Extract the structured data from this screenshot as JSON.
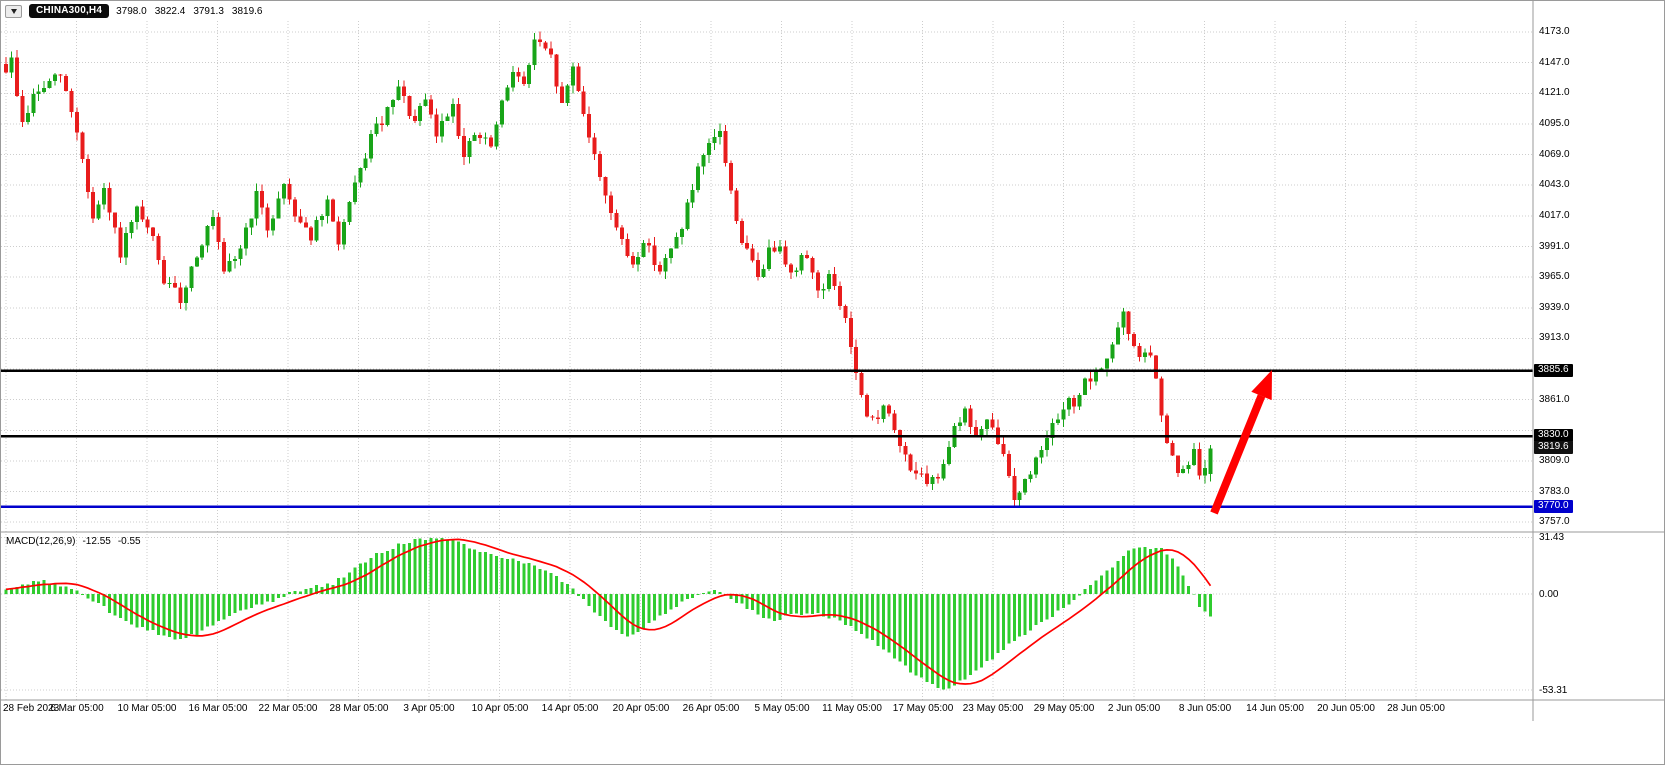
{
  "header": {
    "symbol": "CHINA300,H4",
    "open": "3798.0",
    "high": "3822.4",
    "low": "3791.3",
    "close": "3819.6"
  },
  "macd_panel": {
    "label": "MACD(12,26,9)",
    "main_value": "-12.55",
    "signal_value": "-0.55"
  },
  "price_axis": {
    "ticks": [
      "4173.0",
      "4147.0",
      "4121.0",
      "4095.0",
      "4069.0",
      "4043.0",
      "4017.0",
      "3991.0",
      "3965.0",
      "3939.0",
      "3913.0",
      "3861.0",
      "3809.0",
      "3783.0",
      "3757.0"
    ],
    "badges": [
      {
        "value": "3885.6",
        "price": 3885.6,
        "bg": "#000000",
        "fg": "#ffffff"
      },
      {
        "value": "3830.0",
        "price": 3830.0,
        "bg": "#000000",
        "fg": "#ffffff"
      },
      {
        "value": "3819.6",
        "price": 3819.6,
        "bg": "#111111",
        "fg": "#ffffff"
      },
      {
        "value": "3770.0",
        "price": 3770.0,
        "bg": "#0000cc",
        "fg": "#ffffff"
      }
    ]
  },
  "macd_axis": [
    {
      "label": "31.43",
      "value": 31.43
    },
    {
      "label": "0.00",
      "value": 0
    },
    {
      "label": "-53.31",
      "value": -53.31
    }
  ],
  "time_axis": {
    "labels": [
      "28 Feb 2023",
      "6 Mar 05:00",
      "10 Mar 05:00",
      "16 Mar 05:00",
      "22 Mar 05:00",
      "28 Mar 05:00",
      "3 Apr 05:00",
      "10 Apr 05:00",
      "14 Apr 05:00",
      "20 Apr 05:00",
      "26 Apr 05:00",
      "5 May 05:00",
      "11 May 05:00",
      "17 May 05:00",
      "23 May 05:00",
      "29 May 05:00",
      "2 Jun 05:00",
      "8 Jun 05:00",
      "14 Jun 05:00",
      "20 Jun 05:00",
      "28 Jun 05:00"
    ]
  },
  "levels": [
    {
      "name": "resistance-line",
      "price": 3885.6,
      "color": "#000000",
      "width": 2.5
    },
    {
      "name": "support-line",
      "price": 3830.0,
      "color": "#000000",
      "width": 2.5
    },
    {
      "name": "lower-support-line",
      "price": 3770.0,
      "color": "#0000cc",
      "width": 2.5
    }
  ],
  "chart_data": {
    "type": "candlestick",
    "symbol": "CHINA300",
    "timeframe": "H4",
    "title": "CHINA300,H4 3798.0 3822.4 3791.3 3819.6",
    "bars": 222,
    "seed": 9,
    "last": {
      "open": 3798.0,
      "high": 3822.4,
      "low": 3791.3,
      "close": 3819.6
    },
    "macd_last_main": -12.55,
    "macd_last_signal": -0.55,
    "y_axis_range": [
      3748,
      4184
    ],
    "macd_axis_range": [
      -58,
      34
    ],
    "grid_prices": [
      4173,
      4147,
      4121,
      4095,
      4069,
      4043,
      4017,
      3991,
      3965,
      3939,
      3913,
      3887,
      3861,
      3835,
      3809,
      3783,
      3757
    ],
    "macd_grid": [
      31.43,
      0,
      -53.31
    ],
    "key_levels": [
      3885.6,
      3830.0,
      3770.0
    ],
    "price_path_format": "[bar_index, close_price] waypoints traced from the chart; candles interpolated between them",
    "price_path": [
      [
        0,
        4142
      ],
      [
        1,
        4148
      ],
      [
        3,
        4095
      ],
      [
        5,
        4118
      ],
      [
        7,
        4126
      ],
      [
        10,
        4136
      ],
      [
        13,
        4090
      ],
      [
        16,
        4014
      ],
      [
        18,
        4036
      ],
      [
        21,
        3986
      ],
      [
        24,
        4020
      ],
      [
        27,
        3996
      ],
      [
        29,
        3962
      ],
      [
        32,
        3946
      ],
      [
        35,
        3986
      ],
      [
        38,
        4014
      ],
      [
        40,
        3966
      ],
      [
        43,
        3990
      ],
      [
        46,
        4034
      ],
      [
        48,
        4006
      ],
      [
        51,
        4044
      ],
      [
        53,
        4020
      ],
      [
        56,
        4000
      ],
      [
        59,
        4026
      ],
      [
        61,
        3996
      ],
      [
        64,
        4040
      ],
      [
        67,
        4084
      ],
      [
        70,
        4104
      ],
      [
        72,
        4124
      ],
      [
        75,
        4096
      ],
      [
        77,
        4114
      ],
      [
        79,
        4086
      ],
      [
        82,
        4114
      ],
      [
        84,
        4066
      ],
      [
        86,
        4086
      ],
      [
        89,
        4076
      ],
      [
        91,
        4110
      ],
      [
        93,
        4144
      ],
      [
        95,
        4126
      ],
      [
        97,
        4166
      ],
      [
        100,
        4150
      ],
      [
        102,
        4110
      ],
      [
        104,
        4144
      ],
      [
        106,
        4106
      ],
      [
        108,
        4066
      ],
      [
        111,
        4022
      ],
      [
        113,
        3992
      ],
      [
        115,
        3976
      ],
      [
        117,
        3996
      ],
      [
        120,
        3972
      ],
      [
        122,
        3986
      ],
      [
        124,
        4010
      ],
      [
        127,
        4054
      ],
      [
        129,
        4074
      ],
      [
        131,
        4090
      ],
      [
        133,
        4036
      ],
      [
        135,
        3996
      ],
      [
        138,
        3966
      ],
      [
        140,
        3986
      ],
      [
        142,
        3996
      ],
      [
        144,
        3966
      ],
      [
        147,
        3986
      ],
      [
        149,
        3952
      ],
      [
        151,
        3966
      ],
      [
        154,
        3930
      ],
      [
        156,
        3882
      ],
      [
        158,
        3842
      ],
      [
        160,
        3846
      ],
      [
        161,
        3860
      ],
      [
        163,
        3832
      ],
      [
        165,
        3812
      ],
      [
        167,
        3800
      ],
      [
        169,
        3786
      ],
      [
        171,
        3796
      ],
      [
        172,
        3810
      ],
      [
        174,
        3840
      ],
      [
        176,
        3850
      ],
      [
        178,
        3830
      ],
      [
        180,
        3840
      ],
      [
        182,
        3826
      ],
      [
        183,
        3812
      ],
      [
        185,
        3780
      ],
      [
        187,
        3790
      ],
      [
        189,
        3810
      ],
      [
        191,
        3834
      ],
      [
        193,
        3840
      ],
      [
        194,
        3854
      ],
      [
        196,
        3860
      ],
      [
        198,
        3874
      ],
      [
        200,
        3880
      ],
      [
        202,
        3898
      ],
      [
        204,
        3920
      ],
      [
        205,
        3934
      ],
      [
        206,
        3912
      ],
      [
        208,
        3900
      ],
      [
        210,
        3896
      ],
      [
        211,
        3880
      ],
      [
        212,
        3842
      ],
      [
        214,
        3810
      ],
      [
        215,
        3796
      ],
      [
        217,
        3806
      ],
      [
        218,
        3814
      ],
      [
        219,
        3802
      ],
      [
        220,
        3798
      ],
      [
        221,
        3819.6
      ]
    ],
    "macd_path_format": "[bar_index, macd_histogram_value] waypoints traced from the indicator pane",
    "macd_path": [
      [
        0,
        3
      ],
      [
        4,
        6
      ],
      [
        7,
        7
      ],
      [
        11,
        4
      ],
      [
        14,
        0
      ],
      [
        17,
        -5
      ],
      [
        20,
        -12
      ],
      [
        24,
        -18
      ],
      [
        28,
        -22
      ],
      [
        31,
        -25
      ],
      [
        35,
        -22
      ],
      [
        39,
        -15
      ],
      [
        42,
        -10
      ],
      [
        46,
        -6
      ],
      [
        50,
        -3
      ],
      [
        53,
        2
      ],
      [
        57,
        4
      ],
      [
        60,
        6
      ],
      [
        62,
        10
      ],
      [
        65,
        16
      ],
      [
        68,
        22
      ],
      [
        72,
        27
      ],
      [
        75,
        30
      ],
      [
        79,
        31
      ],
      [
        83,
        29
      ],
      [
        86,
        25
      ],
      [
        89,
        22
      ],
      [
        92,
        20
      ],
      [
        94,
        18
      ],
      [
        97,
        16
      ],
      [
        100,
        12
      ],
      [
        103,
        5
      ],
      [
        106,
        -3
      ],
      [
        108,
        -10
      ],
      [
        111,
        -18
      ],
      [
        114,
        -23
      ],
      [
        117,
        -20
      ],
      [
        119,
        -14
      ],
      [
        122,
        -8
      ],
      [
        125,
        -3
      ],
      [
        128,
        0
      ],
      [
        130,
        2
      ],
      [
        133,
        -2
      ],
      [
        136,
        -8
      ],
      [
        139,
        -13
      ],
      [
        141,
        -15
      ],
      [
        144,
        -12
      ],
      [
        147,
        -10
      ],
      [
        150,
        -12
      ],
      [
        152,
        -14
      ],
      [
        155,
        -18
      ],
      [
        158,
        -24
      ],
      [
        161,
        -30
      ],
      [
        163,
        -36
      ],
      [
        166,
        -43
      ],
      [
        169,
        -49
      ],
      [
        171,
        -53
      ],
      [
        173,
        -52
      ],
      [
        176,
        -47
      ],
      [
        179,
        -40
      ],
      [
        182,
        -33
      ],
      [
        184,
        -28
      ],
      [
        187,
        -22
      ],
      [
        190,
        -16
      ],
      [
        193,
        -10
      ],
      [
        195,
        -5
      ],
      [
        198,
        2
      ],
      [
        201,
        10
      ],
      [
        204,
        18
      ],
      [
        206,
        24
      ],
      [
        209,
        26
      ],
      [
        212,
        25
      ],
      [
        214,
        20
      ],
      [
        216,
        10
      ],
      [
        218,
        0
      ],
      [
        219,
        -8
      ],
      [
        221,
        -12.55
      ]
    ],
    "arrow": {
      "from": [
        1213,
        512
      ],
      "to": [
        1271,
        369
      ]
    },
    "colors": {
      "up": "#18a418",
      "down": "#e81c1c",
      "macd_hist": "#2fcc2f",
      "macd_signal": "#ff0000",
      "arrow": "#ff0000",
      "grid": "#cdcdcd",
      "separator": "#9a9a9a"
    }
  }
}
